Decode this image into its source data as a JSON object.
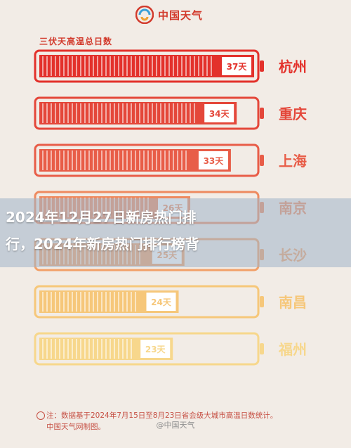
{
  "header": {
    "logo_text": "中国天气"
  },
  "chart_data": {
    "type": "bar",
    "title": "三伏天高温总日数",
    "categories": [
      "杭州",
      "重庆",
      "上海",
      "南京",
      "长沙",
      "南昌",
      "福州"
    ],
    "values": [
      37,
      34,
      33,
      26,
      25,
      24,
      23
    ],
    "value_labels": [
      "37天",
      "34天",
      "33天",
      "26天",
      "25天",
      "24天",
      "23天"
    ],
    "xlim": [
      0,
      37
    ],
    "colors": [
      "#e3312b",
      "#e4473a",
      "#e85d48",
      "#ee8a5f",
      "#f2a068",
      "#f6c77a",
      "#f7d78c"
    ]
  },
  "banner": {
    "line1": "2024年12月27日新房热门排",
    "line2": "行，2024年新房热门排行榜背"
  },
  "footnote": {
    "line1": "注：数据基于2024年7月15日至8月23日省会级大城市高温日数统计。",
    "line2": "中国天气网制图。"
  },
  "watermark": "@中国天气"
}
